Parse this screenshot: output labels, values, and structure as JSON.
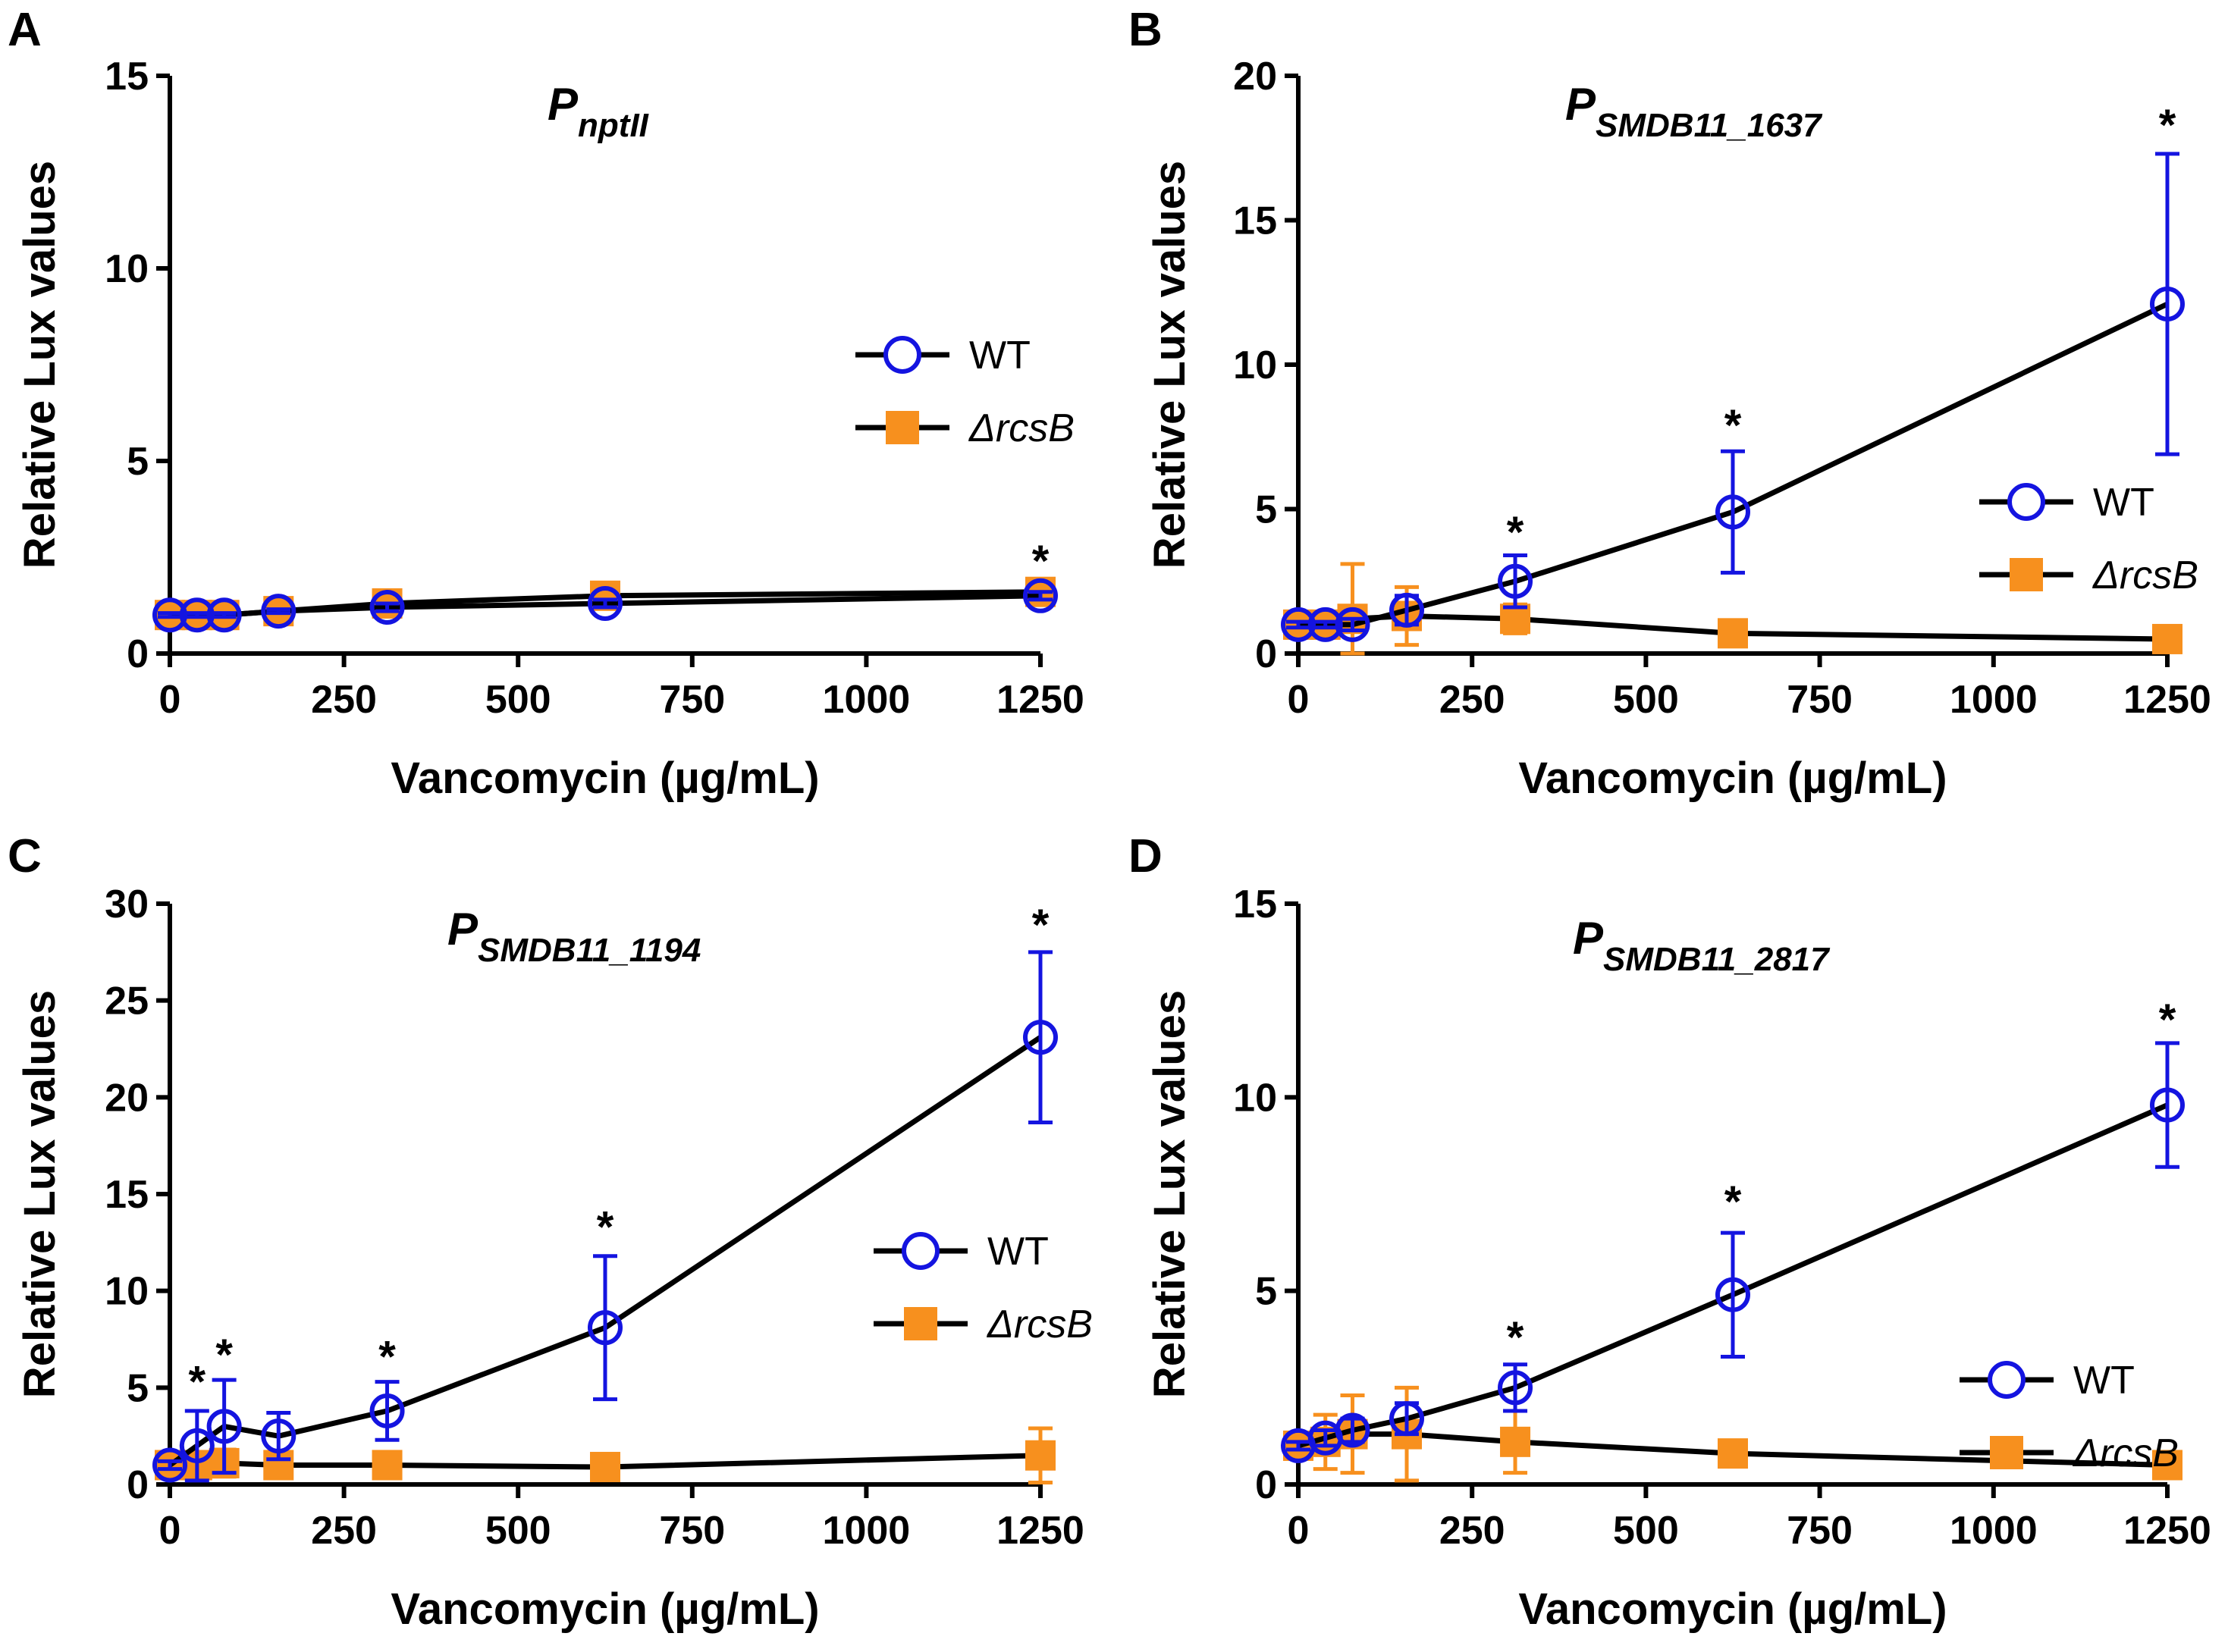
{
  "figure": {
    "x_label": "Vancomycin (µg/mL)",
    "y_label": "Relative Lux values"
  },
  "colors": {
    "wt": "#1414e0",
    "rcsb": "#f7901e",
    "line": "#000000"
  },
  "chart_data": [
    {
      "panel": "A",
      "type": "line",
      "title_main": "P",
      "title_sub": "nptII",
      "title_main_italic": true,
      "xlabel": "Vancomycin (µg/mL)",
      "ylabel": "Relative Lux values",
      "xlim": [
        0,
        1250
      ],
      "ylim": [
        0,
        15
      ],
      "xticks": [
        0,
        250,
        500,
        750,
        1000,
        1250
      ],
      "yticks": [
        0,
        5,
        10,
        15
      ],
      "legend_position": "right-middle",
      "x": [
        0,
        39,
        78,
        156,
        312,
        625,
        1250
      ],
      "series": [
        {
          "name": "WT",
          "values": [
            1.0,
            1.0,
            1.0,
            1.1,
            1.2,
            1.3,
            1.5
          ],
          "errors": [
            0.05,
            0.05,
            0.05,
            0.05,
            0.1,
            0.1,
            0.1
          ]
        },
        {
          "name": "ΔrcsB",
          "values": [
            1.0,
            1.0,
            1.0,
            1.1,
            1.3,
            1.5,
            1.6
          ],
          "errors": [
            0.1,
            0.1,
            0.1,
            0.1,
            0.15,
            0.15,
            0.15
          ]
        }
      ],
      "significance": [
        {
          "x": 1250,
          "label": "*",
          "value": 2.4
        }
      ]
    },
    {
      "panel": "B",
      "type": "line",
      "title_main": "P",
      "title_sub": "SMDB11_1637",
      "title_main_italic": false,
      "xlabel": "Vancomycin (µg/mL)",
      "ylabel": "Relative Lux values",
      "xlim": [
        0,
        1250
      ],
      "ylim": [
        0,
        20
      ],
      "xticks": [
        0,
        250,
        500,
        750,
        1000,
        1250
      ],
      "yticks": [
        0,
        5,
        10,
        15,
        20
      ],
      "legend_position": "right-middle",
      "x": [
        0,
        39,
        78,
        156,
        312,
        625,
        1250
      ],
      "series": [
        {
          "name": "WT",
          "values": [
            1.0,
            1.0,
            1.0,
            1.5,
            2.5,
            4.9,
            12.1
          ],
          "errors": [
            0.1,
            0.1,
            0.2,
            0.5,
            0.9,
            2.1,
            5.2
          ]
        },
        {
          "name": "ΔrcsB",
          "values": [
            1.0,
            1.0,
            1.2,
            1.3,
            1.2,
            0.7,
            0.5
          ],
          "errors": [
            0.2,
            0.3,
            1.9,
            1.0,
            0.5,
            0.2,
            0.2
          ]
        }
      ],
      "significance": [
        {
          "x": 312,
          "label": "*",
          "value": 4.2
        },
        {
          "x": 625,
          "label": "*",
          "value": 7.9
        },
        {
          "x": 1250,
          "label": "*",
          "value": 18.3
        }
      ]
    },
    {
      "panel": "C",
      "type": "line",
      "title_main": "P",
      "title_sub": "SMDB11_1194",
      "title_main_italic": false,
      "xlabel": "Vancomycin (µg/mL)",
      "ylabel": "Relative Lux values",
      "xlim": [
        0,
        1250
      ],
      "ylim": [
        0,
        30
      ],
      "xticks": [
        0,
        250,
        500,
        750,
        1000,
        1250
      ],
      "yticks": [
        0,
        5,
        10,
        15,
        20,
        25,
        30
      ],
      "legend_position": "right-middle",
      "x": [
        0,
        39,
        78,
        156,
        312,
        625,
        1250
      ],
      "series": [
        {
          "name": "WT",
          "values": [
            1.0,
            2.0,
            3.0,
            2.5,
            3.8,
            8.1,
            23.1
          ],
          "errors": [
            0.2,
            1.8,
            2.4,
            1.2,
            1.5,
            3.7,
            4.4
          ]
        },
        {
          "name": "ΔrcsB",
          "values": [
            1.0,
            1.0,
            1.1,
            1.0,
            1.0,
            0.9,
            1.5
          ],
          "errors": [
            0.5,
            0.6,
            0.7,
            0.4,
            0.4,
            0.3,
            1.4
          ]
        }
      ],
      "significance": [
        {
          "x": 39,
          "label": "*",
          "value": 5.3
        },
        {
          "x": 78,
          "label": "*",
          "value": 6.7
        },
        {
          "x": 312,
          "label": "*",
          "value": 6.6
        },
        {
          "x": 625,
          "label": "*",
          "value": 13.3
        },
        {
          "x": 1250,
          "label": "*",
          "value": 28.9
        }
      ]
    },
    {
      "panel": "D",
      "type": "line",
      "title_main": "P",
      "title_sub": "SMDB11_2817",
      "title_main_italic": false,
      "xlabel": "Vancomycin (µg/mL)",
      "ylabel": "Relative Lux values",
      "xlim": [
        0,
        1250
      ],
      "ylim": [
        0,
        15
      ],
      "xticks": [
        0,
        250,
        500,
        750,
        1000,
        1250
      ],
      "yticks": [
        0,
        5,
        10,
        15
      ],
      "legend_position": "right-lower",
      "x": [
        0,
        39,
        78,
        156,
        312,
        625,
        1250
      ],
      "series": [
        {
          "name": "WT",
          "values": [
            1.0,
            1.2,
            1.4,
            1.7,
            2.5,
            4.9,
            9.8
          ],
          "errors": [
            0.1,
            0.2,
            0.3,
            0.4,
            0.6,
            1.6,
            1.6
          ]
        },
        {
          "name": "ΔrcsB",
          "values": [
            1.0,
            1.1,
            1.3,
            1.3,
            1.1,
            0.8,
            0.5
          ],
          "errors": [
            0.3,
            0.7,
            1.0,
            1.2,
            0.8,
            0.2,
            0.1
          ]
        }
      ],
      "significance": [
        {
          "x": 312,
          "label": "*",
          "value": 3.8
        },
        {
          "x": 625,
          "label": "*",
          "value": 7.3
        },
        {
          "x": 1250,
          "label": "*",
          "value": 12.0
        }
      ]
    }
  ]
}
